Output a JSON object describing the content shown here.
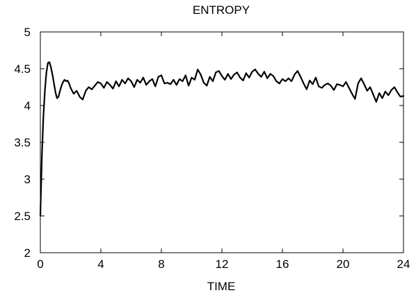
{
  "chart_data": {
    "type": "line",
    "title": "ENTROPY",
    "xlabel": "TIME",
    "ylabel": "",
    "xlim": [
      0,
      24
    ],
    "ylim": [
      2,
      5
    ],
    "xticks": [
      "0",
      "4",
      "8",
      "12",
      "16",
      "20",
      "24"
    ],
    "yticks": [
      "2",
      "2.5",
      "3",
      "3.5",
      "4",
      "4.5",
      "5"
    ],
    "grid": false,
    "legend": "none",
    "line_color": "#000000",
    "series": [
      {
        "x": [
          0,
          0.1,
          0.2,
          0.3,
          0.4,
          0.5,
          0.6,
          0.7,
          0.8,
          0.9,
          1.0,
          1.1,
          1.2,
          1.3,
          1.4,
          1.5,
          1.6,
          1.7,
          1.8,
          1.9,
          2.0,
          2.2,
          2.4,
          2.6,
          2.8,
          3.0,
          3.2,
          3.4,
          3.6,
          3.8,
          4.0,
          4.2,
          4.4,
          4.6,
          4.8,
          5.0,
          5.2,
          5.4,
          5.6,
          5.8,
          6.0,
          6.2,
          6.4,
          6.6,
          6.8,
          7.0,
          7.2,
          7.4,
          7.6,
          7.8,
          8.0,
          8.2,
          8.4,
          8.6,
          8.8,
          9.0,
          9.2,
          9.4,
          9.6,
          9.8,
          10.0,
          10.2,
          10.4,
          10.6,
          10.8,
          11.0,
          11.2,
          11.4,
          11.6,
          11.8,
          12.0,
          12.2,
          12.4,
          12.6,
          12.8,
          13.0,
          13.2,
          13.4,
          13.6,
          13.8,
          14.0,
          14.2,
          14.4,
          14.6,
          14.8,
          15.0,
          15.2,
          15.4,
          15.6,
          15.8,
          16.0,
          16.2,
          16.4,
          16.6,
          16.8,
          17.0,
          17.2,
          17.4,
          17.6,
          17.8,
          18.0,
          18.2,
          18.4,
          18.6,
          18.8,
          19.0,
          19.2,
          19.4,
          19.6,
          19.8,
          20.0,
          20.2,
          20.4,
          20.6,
          20.8,
          21.0,
          21.2,
          21.4,
          21.6,
          21.8,
          22.0,
          22.2,
          22.4,
          22.6,
          22.8,
          23.0,
          23.2,
          23.4,
          23.6,
          23.8,
          24.0
        ],
        "y": [
          2.5,
          3.3,
          3.85,
          4.2,
          4.45,
          4.58,
          4.59,
          4.52,
          4.42,
          4.3,
          4.18,
          4.1,
          4.12,
          4.2,
          4.27,
          4.32,
          4.35,
          4.33,
          4.34,
          4.3,
          4.24,
          4.16,
          4.2,
          4.12,
          4.08,
          4.2,
          4.25,
          4.22,
          4.27,
          4.32,
          4.3,
          4.24,
          4.32,
          4.28,
          4.23,
          4.33,
          4.26,
          4.35,
          4.3,
          4.37,
          4.33,
          4.25,
          4.35,
          4.31,
          4.38,
          4.28,
          4.33,
          4.36,
          4.26,
          4.39,
          4.41,
          4.3,
          4.31,
          4.29,
          4.35,
          4.28,
          4.36,
          4.33,
          4.41,
          4.27,
          4.38,
          4.35,
          4.49,
          4.42,
          4.31,
          4.27,
          4.39,
          4.33,
          4.45,
          4.47,
          4.4,
          4.35,
          4.43,
          4.36,
          4.42,
          4.45,
          4.38,
          4.34,
          4.44,
          4.38,
          4.46,
          4.49,
          4.43,
          4.39,
          4.46,
          4.37,
          4.43,
          4.4,
          4.33,
          4.3,
          4.36,
          4.33,
          4.37,
          4.33,
          4.42,
          4.47,
          4.39,
          4.3,
          4.22,
          4.34,
          4.29,
          4.38,
          4.26,
          4.24,
          4.28,
          4.3,
          4.27,
          4.21,
          4.29,
          4.28,
          4.26,
          4.32,
          4.24,
          4.16,
          4.09,
          4.3,
          4.37,
          4.29,
          4.2,
          4.25,
          4.15,
          4.05,
          4.17,
          4.1,
          4.19,
          4.14,
          4.21,
          4.25,
          4.18,
          4.12,
          4.13
        ]
      }
    ]
  }
}
